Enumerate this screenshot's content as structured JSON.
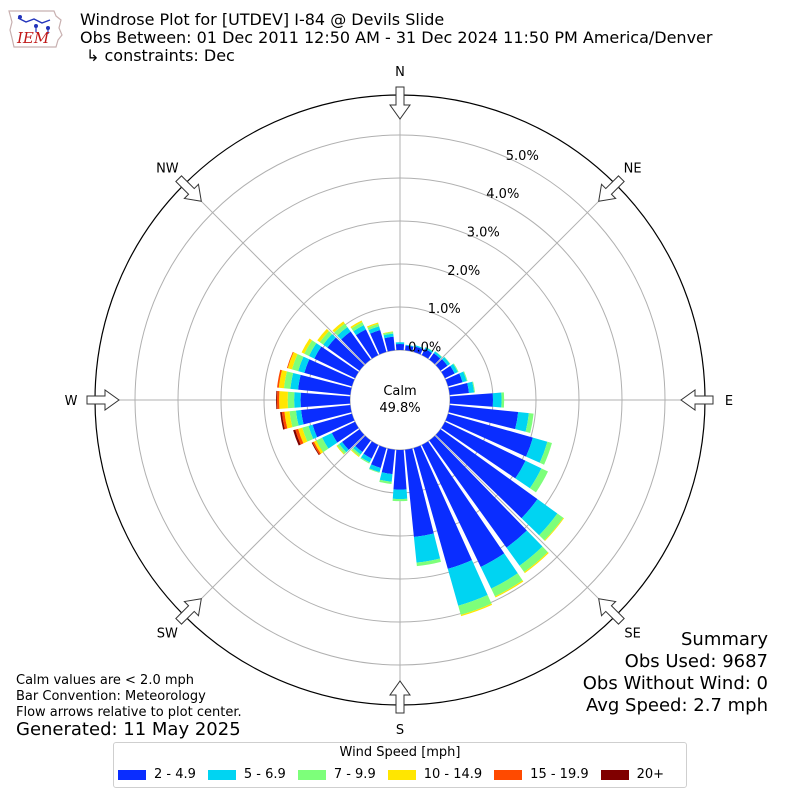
{
  "header": {
    "logo_text": "IEM",
    "title": "Windrose Plot for [UTDEV] I-84 @ Devils Slide",
    "obs_between": "Obs Between: 01 Dec 2011 12:50 AM - 31 Dec 2024 11:50 PM America/Denver",
    "constraints": "↳ constraints: Dec"
  },
  "notes": {
    "calm_def": "Calm values are < 2.0 mph",
    "bar_convention": "Bar Convention: Meteorology",
    "flow_arrows": "Flow arrows relative to plot center.",
    "generated": "Generated: 11 May 2025"
  },
  "summary": {
    "title": "Summary",
    "obs_used": "Obs Used: 9687",
    "obs_without_wind": "Obs Without Wind: 0",
    "avg_speed": "Avg Speed: 2.7 mph"
  },
  "legend": {
    "title": "Wind Speed [mph]"
  },
  "chart_data": {
    "type": "windrose",
    "calm_label": "Calm",
    "calm_value": "49.8%",
    "radial_ticks": [
      "0.0%",
      "1.0%",
      "2.0%",
      "3.0%",
      "4.0%",
      "5.0%"
    ],
    "radial_tick_values": [
      0,
      1,
      2,
      3,
      4,
      5
    ],
    "rmax": 5.6,
    "cardinal_labels": [
      "N",
      "NE",
      "E",
      "SE",
      "S",
      "SW",
      "W",
      "NW"
    ],
    "bins": [
      {
        "label": "2 - 4.9",
        "color": "#0a2dff"
      },
      {
        "label": "5 - 6.9",
        "color": "#00d4f2"
      },
      {
        "label": "7 - 9.9",
        "color": "#7dff7a"
      },
      {
        "label": "10 - 14.9",
        "color": "#ffe600"
      },
      {
        "label": "15 - 19.9",
        "color": "#ff4a00"
      },
      {
        "label": "20+",
        "color": "#800000"
      }
    ],
    "directions": [
      0,
      10,
      20,
      30,
      40,
      50,
      60,
      70,
      80,
      90,
      100,
      110,
      120,
      130,
      140,
      150,
      160,
      170,
      180,
      190,
      200,
      210,
      220,
      230,
      240,
      250,
      260,
      270,
      280,
      290,
      300,
      310,
      320,
      330,
      340,
      350
    ],
    "stacks": [
      [
        0.14,
        0.04,
        0.0,
        0.0,
        0.0,
        0.0
      ],
      [
        0.11,
        0.02,
        0.0,
        0.0,
        0.0,
        0.0
      ],
      [
        0.13,
        0.03,
        0.0,
        0.0,
        0.0,
        0.0
      ],
      [
        0.16,
        0.04,
        0.01,
        0.0,
        0.0,
        0.0
      ],
      [
        0.18,
        0.05,
        0.01,
        0.0,
        0.0,
        0.0
      ],
      [
        0.2,
        0.07,
        0.01,
        0.0,
        0.0,
        0.0
      ],
      [
        0.25,
        0.08,
        0.02,
        0.0,
        0.0,
        0.0
      ],
      [
        0.35,
        0.1,
        0.02,
        0.0,
        0.0,
        0.0
      ],
      [
        0.45,
        0.12,
        0.02,
        0.0,
        0.0,
        0.0
      ],
      [
        1.0,
        0.2,
        0.06,
        0.0,
        0.0,
        0.0
      ],
      [
        1.6,
        0.25,
        0.11,
        0.0,
        0.0,
        0.0
      ],
      [
        2.05,
        0.35,
        0.11,
        0.0,
        0.0,
        0.0
      ],
      [
        2.08,
        0.41,
        0.17,
        0.0,
        0.0,
        0.0
      ],
      [
        2.78,
        0.57,
        0.17,
        0.02,
        0.0,
        0.0
      ],
      [
        3.07,
        0.52,
        0.18,
        0.03,
        0.0,
        0.0
      ],
      [
        3.15,
        0.56,
        0.2,
        0.03,
        0.0,
        0.0
      ],
      [
        2.92,
        0.89,
        0.22,
        0.03,
        0.0,
        0.0
      ],
      [
        2.04,
        0.6,
        0.08,
        0.0,
        0.0,
        0.0
      ],
      [
        0.92,
        0.22,
        0.05,
        0.0,
        0.0,
        0.0
      ],
      [
        0.57,
        0.18,
        0.05,
        0.0,
        0.0,
        0.0
      ],
      [
        0.48,
        0.1,
        0.02,
        0.0,
        0.0,
        0.0
      ],
      [
        0.35,
        0.1,
        0.03,
        0.0,
        0.0,
        0.0
      ],
      [
        0.33,
        0.07,
        0.05,
        0.02,
        0.0,
        0.0
      ],
      [
        0.5,
        0.08,
        0.06,
        0.02,
        0.0,
        0.0
      ],
      [
        0.6,
        0.25,
        0.15,
        0.06,
        0.04,
        0.02
      ],
      [
        0.95,
        0.1,
        0.15,
        0.1,
        0.07,
        0.05
      ],
      [
        1.15,
        0.12,
        0.15,
        0.12,
        0.06,
        0.04
      ],
      [
        1.15,
        0.15,
        0.15,
        0.2,
        0.05,
        0.02
      ],
      [
        1.22,
        0.18,
        0.15,
        0.12,
        0.04,
        0.0
      ],
      [
        1.15,
        0.15,
        0.15,
        0.1,
        0.02,
        0.0
      ],
      [
        1.05,
        0.14,
        0.12,
        0.07,
        0.0,
        0.0
      ],
      [
        0.92,
        0.12,
        0.1,
        0.07,
        0.0,
        0.0
      ],
      [
        0.8,
        0.13,
        0.1,
        0.06,
        0.0,
        0.0
      ],
      [
        0.66,
        0.11,
        0.08,
        0.04,
        0.0,
        0.0
      ],
      [
        0.53,
        0.09,
        0.06,
        0.03,
        0.0,
        0.0
      ],
      [
        0.32,
        0.07,
        0.04,
        0.01,
        0.0,
        0.0
      ]
    ]
  }
}
